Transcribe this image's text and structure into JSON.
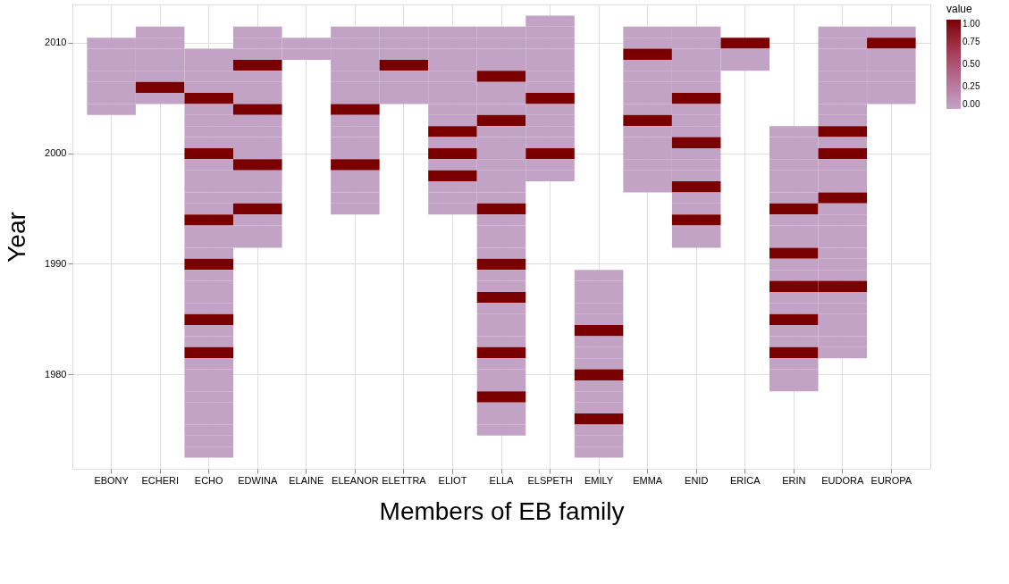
{
  "chart_data": {
    "type": "heatmap",
    "xlabel": "Members of EB family",
    "ylabel": "Year",
    "legend_title": "value",
    "grid": true,
    "categories": [
      "EBONY",
      "ECHERI",
      "ECHO",
      "EDWINA",
      "ELAINE",
      "ELEANOR",
      "ELETTRA",
      "ELIOT",
      "ELLA",
      "ELSPETH",
      "EMILY",
      "EMMA",
      "ENID",
      "ERICA",
      "ERIN",
      "EUDORA",
      "EUROPA"
    ],
    "y_categories": [
      null,
      null,
      "2010",
      null,
      null,
      null,
      null,
      null,
      null,
      null,
      null,
      null,
      "2000",
      null,
      null,
      null,
      null,
      null,
      null,
      null,
      null,
      null,
      "1990",
      null,
      null,
      null,
      null,
      null,
      null,
      null,
      null,
      null,
      "1980",
      null,
      null,
      null,
      null,
      null,
      null,
      null
    ],
    "colors": [
      "#c3a3c5",
      "#7a0000"
    ],
    "clim": [
      0,
      1
    ],
    "cticks": [
      {
        "value": 0,
        "label": "0.00"
      },
      {
        "value": 0.25,
        "label": "0.25"
      },
      {
        "value": 0.5,
        "label": "0.50"
      },
      {
        "value": 0.75,
        "label": "0.75"
      },
      {
        "value": 1,
        "label": "1.00"
      }
    ],
    "cells": [
      [
        null,
        null,
        null,
        null,
        null,
        null,
        null,
        null,
        null,
        0,
        null,
        null,
        null,
        null,
        null,
        null,
        null
      ],
      [
        null,
        0,
        null,
        0,
        null,
        0,
        0,
        0,
        0,
        0,
        null,
        0,
        0,
        null,
        null,
        0,
        0
      ],
      [
        0,
        0,
        null,
        0,
        0,
        0,
        0,
        0,
        0,
        0,
        null,
        0,
        0,
        1,
        null,
        0,
        1
      ],
      [
        0,
        0,
        0,
        0,
        0,
        0,
        0,
        0,
        0,
        0,
        null,
        1,
        0,
        0,
        null,
        0,
        0
      ],
      [
        0,
        0,
        0,
        1,
        null,
        0,
        1,
        0,
        0,
        0,
        null,
        0,
        0,
        0,
        null,
        0,
        0
      ],
      [
        0,
        0,
        0,
        0,
        null,
        0,
        0,
        0,
        1,
        0,
        null,
        0,
        0,
        null,
        null,
        0,
        0
      ],
      [
        0,
        1,
        0,
        0,
        null,
        0,
        0,
        0,
        0,
        0,
        null,
        0,
        0,
        null,
        null,
        0,
        0
      ],
      [
        0,
        0,
        1,
        0,
        null,
        0,
        0,
        0,
        0,
        1,
        null,
        0,
        1,
        null,
        null,
        0,
        0
      ],
      [
        0,
        null,
        0,
        1,
        null,
        1,
        null,
        0,
        0,
        0,
        null,
        0,
        0,
        null,
        null,
        0,
        null
      ],
      [
        null,
        null,
        0,
        0,
        null,
        0,
        null,
        0,
        1,
        0,
        null,
        1,
        0,
        null,
        null,
        0,
        null
      ],
      [
        null,
        null,
        0,
        0,
        null,
        0,
        null,
        1,
        0,
        0,
        null,
        0,
        0,
        null,
        0,
        1,
        null
      ],
      [
        null,
        null,
        0,
        0,
        null,
        0,
        null,
        0,
        0,
        0,
        null,
        0,
        1,
        null,
        0,
        0,
        null
      ],
      [
        null,
        null,
        1,
        0,
        null,
        0,
        null,
        1,
        0,
        1,
        null,
        0,
        0,
        null,
        0,
        1,
        null
      ],
      [
        null,
        null,
        0,
        1,
        null,
        1,
        null,
        0,
        0,
        0,
        null,
        0,
        0,
        null,
        0,
        0,
        null
      ],
      [
        null,
        null,
        0,
        0,
        null,
        0,
        null,
        1,
        0,
        0,
        null,
        0,
        0,
        null,
        0,
        0,
        null
      ],
      [
        null,
        null,
        0,
        0,
        null,
        0,
        null,
        0,
        0,
        null,
        null,
        0,
        1,
        null,
        0,
        0,
        null
      ],
      [
        null,
        null,
        0,
        0,
        null,
        0,
        null,
        0,
        0,
        null,
        null,
        null,
        0,
        null,
        0,
        1,
        null
      ],
      [
        null,
        null,
        0,
        1,
        null,
        0,
        null,
        0,
        1,
        null,
        null,
        null,
        0,
        null,
        1,
        0,
        null
      ],
      [
        null,
        null,
        1,
        0,
        null,
        null,
        null,
        null,
        0,
        null,
        null,
        null,
        1,
        null,
        0,
        0,
        null
      ],
      [
        null,
        null,
        0,
        0,
        null,
        null,
        null,
        null,
        0,
        null,
        null,
        null,
        0,
        null,
        0,
        0,
        null
      ],
      [
        null,
        null,
        0,
        0,
        null,
        null,
        null,
        null,
        0,
        null,
        null,
        null,
        0,
        null,
        0,
        0,
        null
      ],
      [
        null,
        null,
        0,
        null,
        null,
        null,
        null,
        null,
        0,
        null,
        null,
        null,
        null,
        null,
        1,
        0,
        null
      ],
      [
        null,
        null,
        1,
        null,
        null,
        null,
        null,
        null,
        1,
        null,
        null,
        null,
        null,
        null,
        0,
        0,
        null
      ],
      [
        null,
        null,
        0,
        null,
        null,
        null,
        null,
        null,
        0,
        null,
        0,
        null,
        null,
        null,
        0,
        0,
        null
      ],
      [
        null,
        null,
        0,
        null,
        null,
        null,
        null,
        null,
        0,
        null,
        0,
        null,
        null,
        null,
        1,
        1,
        null
      ],
      [
        null,
        null,
        0,
        null,
        null,
        null,
        null,
        null,
        1,
        null,
        0,
        null,
        null,
        null,
        0,
        0,
        null
      ],
      [
        null,
        null,
        0,
        null,
        null,
        null,
        null,
        null,
        0,
        null,
        0,
        null,
        null,
        null,
        0,
        0,
        null
      ],
      [
        null,
        null,
        1,
        null,
        null,
        null,
        null,
        null,
        0,
        null,
        0,
        null,
        null,
        null,
        1,
        0,
        null
      ],
      [
        null,
        null,
        0,
        null,
        null,
        null,
        null,
        null,
        0,
        null,
        1,
        null,
        null,
        null,
        0,
        0,
        null
      ],
      [
        null,
        null,
        0,
        null,
        null,
        null,
        null,
        null,
        0,
        null,
        0,
        null,
        null,
        null,
        0,
        0,
        null
      ],
      [
        null,
        null,
        1,
        null,
        null,
        null,
        null,
        null,
        1,
        null,
        0,
        null,
        null,
        null,
        1,
        0,
        null
      ],
      [
        null,
        null,
        0,
        null,
        null,
        null,
        null,
        null,
        0,
        null,
        0,
        null,
        null,
        null,
        0,
        null,
        null
      ],
      [
        null,
        null,
        0,
        null,
        null,
        null,
        null,
        null,
        0,
        null,
        1,
        null,
        null,
        null,
        0,
        null,
        null
      ],
      [
        null,
        null,
        0,
        null,
        null,
        null,
        null,
        null,
        0,
        null,
        0,
        null,
        null,
        null,
        0,
        null,
        null
      ],
      [
        null,
        null,
        0,
        null,
        null,
        null,
        null,
        null,
        1,
        null,
        0,
        null,
        null,
        null,
        null,
        null,
        null
      ],
      [
        null,
        null,
        0,
        null,
        null,
        null,
        null,
        null,
        0,
        null,
        0,
        null,
        null,
        null,
        null,
        null,
        null
      ],
      [
        null,
        null,
        0,
        null,
        null,
        null,
        null,
        null,
        0,
        null,
        1,
        null,
        null,
        null,
        null,
        null,
        null
      ],
      [
        null,
        null,
        0,
        null,
        null,
        null,
        null,
        null,
        0,
        null,
        0,
        null,
        null,
        null,
        null,
        null,
        null
      ],
      [
        null,
        null,
        0,
        null,
        null,
        null,
        null,
        null,
        null,
        null,
        0,
        null,
        null,
        null,
        null,
        null,
        null
      ],
      [
        null,
        null,
        0,
        null,
        null,
        null,
        null,
        null,
        null,
        null,
        0,
        null,
        null,
        null,
        null,
        null,
        null
      ]
    ]
  }
}
